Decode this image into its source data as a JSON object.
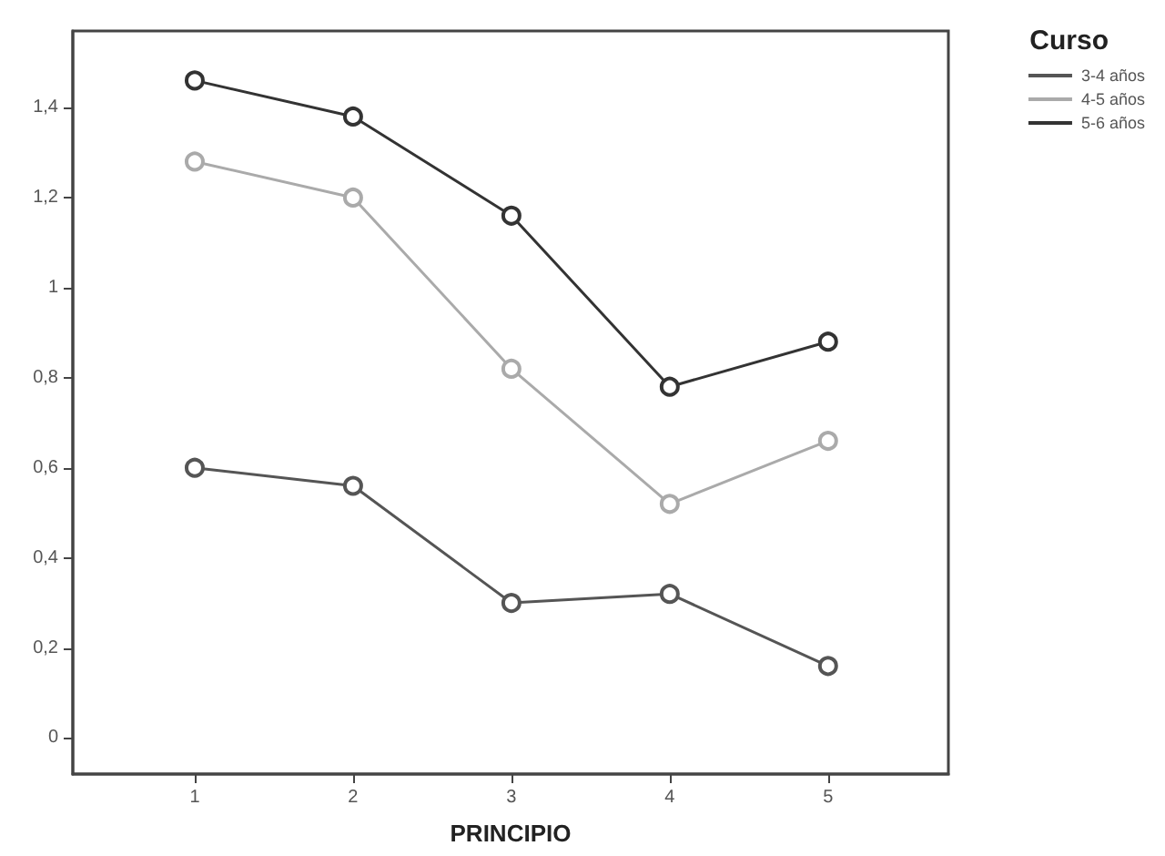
{
  "chart_data": {
    "type": "line",
    "xlabel": "PRINCIPIO",
    "legend_title": "Curso",
    "legend": "top right",
    "marker": "circle",
    "line_style": "solid",
    "grid": false,
    "x": [
      1,
      2,
      3,
      4,
      5
    ],
    "xlim": [
      0.23,
      5.76
    ],
    "xticks": [
      1,
      2,
      3,
      4,
      5
    ],
    "ylim": [
      -0.08,
      1.57
    ],
    "yticks": [
      0,
      {
        "value": 0.2,
        "label": "0,2"
      },
      {
        "value": 0.4,
        "label": "0,4"
      },
      {
        "value": 0.6,
        "label": "0,6"
      },
      {
        "value": 0.8,
        "label": "0,8"
      },
      1,
      {
        "value": 1.2,
        "label": "1,2"
      },
      {
        "value": 1.4,
        "label": "1,4"
      }
    ],
    "series": [
      {
        "name": "3-4 años",
        "color": "#555555",
        "values": [
          0.6,
          0.56,
          0.3,
          0.32,
          0.16
        ]
      },
      {
        "name": "4-5 años",
        "color": "#aaaaaa",
        "values": [
          1.28,
          1.2,
          0.82,
          0.52,
          0.66
        ]
      },
      {
        "name": "5-6 años",
        "color": "#333333",
        "values": [
          1.46,
          1.38,
          1.16,
          0.78,
          0.88
        ]
      }
    ]
  }
}
